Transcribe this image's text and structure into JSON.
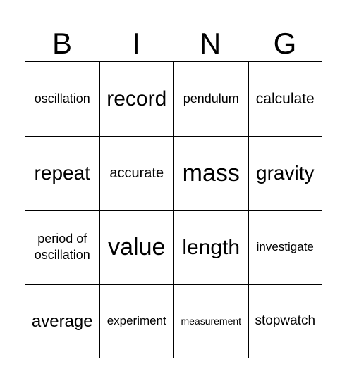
{
  "header": {
    "letters": [
      "B",
      "I",
      "N",
      "G"
    ]
  },
  "grid": {
    "rows": [
      [
        "oscillation",
        "record",
        "pendulum",
        "calculate"
      ],
      [
        "repeat",
        "accurate",
        "mass",
        "gravity"
      ],
      [
        "period of oscillation",
        "value",
        "length",
        "investigate"
      ],
      [
        "average",
        "experiment",
        "measurement",
        "stopwatch"
      ]
    ]
  }
}
